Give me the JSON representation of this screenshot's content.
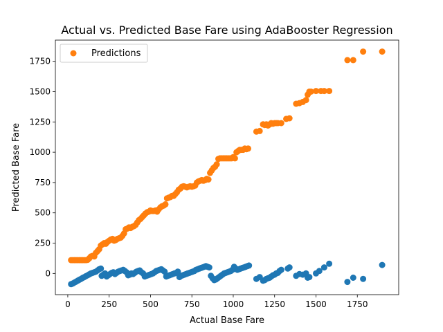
{
  "chart_data": {
    "type": "scatter",
    "title": "Actual vs. Predicted Base Fare using AdaBooster Regression",
    "xlabel": "Actual Base Fare",
    "ylabel": "Predicted Base Fare",
    "xlim": [
      -75,
      2000
    ],
    "ylim": [
      -175,
      1925
    ],
    "xticks": [
      0,
      250,
      500,
      750,
      1000,
      1250,
      1500,
      1750
    ],
    "yticks": [
      0,
      250,
      500,
      750,
      1000,
      1250,
      1500,
      1750
    ],
    "legend": {
      "position": "upper-left",
      "entries": [
        "Predictions"
      ]
    },
    "colors": {
      "residual": "#1f77b4",
      "predictions": "#ff7f0e"
    },
    "series": [
      {
        "name": "",
        "color": "#1f77b4",
        "points": [
          [
            20,
            -88
          ],
          [
            30,
            -83
          ],
          [
            40,
            -75
          ],
          [
            50,
            -68
          ],
          [
            60,
            -60
          ],
          [
            70,
            -52
          ],
          [
            80,
            -45
          ],
          [
            90,
            -37
          ],
          [
            100,
            -30
          ],
          [
            110,
            -22
          ],
          [
            120,
            -15
          ],
          [
            130,
            -8
          ],
          [
            140,
            0
          ],
          [
            150,
            5
          ],
          [
            160,
            10
          ],
          [
            170,
            15
          ],
          [
            180,
            25
          ],
          [
            190,
            35
          ],
          [
            200,
            40
          ],
          [
            205,
            -20
          ],
          [
            215,
            -10
          ],
          [
            225,
            0
          ],
          [
            235,
            -25
          ],
          [
            245,
            -15
          ],
          [
            255,
            -5
          ],
          [
            265,
            5
          ],
          [
            275,
            10
          ],
          [
            285,
            -5
          ],
          [
            295,
            5
          ],
          [
            305,
            15
          ],
          [
            315,
            20
          ],
          [
            325,
            25
          ],
          [
            335,
            30
          ],
          [
            345,
            20
          ],
          [
            355,
            10
          ],
          [
            365,
            -15
          ],
          [
            375,
            -10
          ],
          [
            385,
            0
          ],
          [
            395,
            -5
          ],
          [
            405,
            5
          ],
          [
            415,
            15
          ],
          [
            425,
            20
          ],
          [
            435,
            25
          ],
          [
            445,
            10
          ],
          [
            455,
            0
          ],
          [
            465,
            -25
          ],
          [
            475,
            -20
          ],
          [
            485,
            -15
          ],
          [
            495,
            -10
          ],
          [
            505,
            -5
          ],
          [
            515,
            0
          ],
          [
            525,
            10
          ],
          [
            535,
            20
          ],
          [
            545,
            25
          ],
          [
            555,
            30
          ],
          [
            565,
            35
          ],
          [
            575,
            25
          ],
          [
            585,
            15
          ],
          [
            595,
            -25
          ],
          [
            605,
            -20
          ],
          [
            615,
            -15
          ],
          [
            625,
            -10
          ],
          [
            635,
            -5
          ],
          [
            645,
            0
          ],
          [
            655,
            5
          ],
          [
            665,
            15
          ],
          [
            675,
            -30
          ],
          [
            685,
            -20
          ],
          [
            695,
            -15
          ],
          [
            705,
            -10
          ],
          [
            715,
            -5
          ],
          [
            725,
            0
          ],
          [
            735,
            5
          ],
          [
            745,
            10
          ],
          [
            755,
            15
          ],
          [
            765,
            20
          ],
          [
            775,
            30
          ],
          [
            785,
            35
          ],
          [
            795,
            40
          ],
          [
            805,
            45
          ],
          [
            815,
            50
          ],
          [
            825,
            55
          ],
          [
            835,
            60
          ],
          [
            845,
            55
          ],
          [
            855,
            50
          ],
          [
            865,
            -20
          ],
          [
            875,
            -40
          ],
          [
            885,
            -55
          ],
          [
            895,
            -50
          ],
          [
            905,
            -40
          ],
          [
            915,
            -30
          ],
          [
            925,
            -20
          ],
          [
            935,
            -10
          ],
          [
            945,
            0
          ],
          [
            955,
            5
          ],
          [
            965,
            10
          ],
          [
            975,
            15
          ],
          [
            985,
            20
          ],
          [
            995,
            30
          ],
          [
            1005,
            55
          ],
          [
            1015,
            40
          ],
          [
            1025,
            30
          ],
          [
            1035,
            35
          ],
          [
            1045,
            40
          ],
          [
            1055,
            45
          ],
          [
            1065,
            50
          ],
          [
            1075,
            55
          ],
          [
            1085,
            60
          ],
          [
            1095,
            65
          ],
          [
            1140,
            -45
          ],
          [
            1160,
            -30
          ],
          [
            1180,
            -60
          ],
          [
            1190,
            -55
          ],
          [
            1200,
            -45
          ],
          [
            1210,
            -40
          ],
          [
            1220,
            -35
          ],
          [
            1230,
            -25
          ],
          [
            1240,
            -15
          ],
          [
            1250,
            -10
          ],
          [
            1260,
            0
          ],
          [
            1270,
            5
          ],
          [
            1280,
            20
          ],
          [
            1290,
            30
          ],
          [
            1330,
            40
          ],
          [
            1340,
            50
          ],
          [
            1380,
            -20
          ],
          [
            1400,
            -5
          ],
          [
            1420,
            -10
          ],
          [
            1440,
            0
          ],
          [
            1450,
            -35
          ],
          [
            1460,
            -30
          ],
          [
            1500,
            0
          ],
          [
            1520,
            20
          ],
          [
            1550,
            50
          ],
          [
            1580,
            80
          ],
          [
            1690,
            -70
          ],
          [
            1725,
            -35
          ],
          [
            1785,
            -45
          ],
          [
            1900,
            70
          ]
        ]
      },
      {
        "name": "Predictions",
        "color": "#ff7f0e",
        "points": [
          [
            20,
            110
          ],
          [
            30,
            110
          ],
          [
            40,
            110
          ],
          [
            50,
            110
          ],
          [
            60,
            110
          ],
          [
            70,
            110
          ],
          [
            80,
            110
          ],
          [
            90,
            110
          ],
          [
            100,
            110
          ],
          [
            110,
            110
          ],
          [
            120,
            112
          ],
          [
            130,
            125
          ],
          [
            140,
            140
          ],
          [
            150,
            145
          ],
          [
            160,
            140
          ],
          [
            170,
            170
          ],
          [
            180,
            185
          ],
          [
            190,
            200
          ],
          [
            200,
            230
          ],
          [
            210,
            240
          ],
          [
            220,
            250
          ],
          [
            230,
            245
          ],
          [
            240,
            260
          ],
          [
            250,
            270
          ],
          [
            260,
            280
          ],
          [
            270,
            285
          ],
          [
            280,
            270
          ],
          [
            290,
            275
          ],
          [
            300,
            285
          ],
          [
            310,
            290
          ],
          [
            320,
            295
          ],
          [
            330,
            310
          ],
          [
            340,
            330
          ],
          [
            350,
            365
          ],
          [
            360,
            370
          ],
          [
            370,
            380
          ],
          [
            380,
            375
          ],
          [
            390,
            385
          ],
          [
            400,
            390
          ],
          [
            410,
            400
          ],
          [
            420,
            420
          ],
          [
            430,
            440
          ],
          [
            440,
            450
          ],
          [
            450,
            465
          ],
          [
            460,
            480
          ],
          [
            470,
            495
          ],
          [
            480,
            505
          ],
          [
            490,
            510
          ],
          [
            500,
            520
          ],
          [
            510,
            515
          ],
          [
            520,
            515
          ],
          [
            530,
            520
          ],
          [
            540,
            510
          ],
          [
            550,
            530
          ],
          [
            560,
            545
          ],
          [
            570,
            555
          ],
          [
            580,
            560
          ],
          [
            590,
            570
          ],
          [
            600,
            620
          ],
          [
            610,
            625
          ],
          [
            620,
            630
          ],
          [
            630,
            640
          ],
          [
            640,
            640
          ],
          [
            650,
            655
          ],
          [
            660,
            670
          ],
          [
            670,
            690
          ],
          [
            680,
            700
          ],
          [
            690,
            715
          ],
          [
            700,
            720
          ],
          [
            710,
            715
          ],
          [
            720,
            710
          ],
          [
            730,
            715
          ],
          [
            740,
            720
          ],
          [
            750,
            715
          ],
          [
            760,
            720
          ],
          [
            770,
            725
          ],
          [
            780,
            750
          ],
          [
            790,
            760
          ],
          [
            800,
            765
          ],
          [
            810,
            770
          ],
          [
            820,
            765
          ],
          [
            830,
            770
          ],
          [
            840,
            780
          ],
          [
            850,
            775
          ],
          [
            860,
            830
          ],
          [
            870,
            850
          ],
          [
            880,
            870
          ],
          [
            890,
            880
          ],
          [
            900,
            900
          ],
          [
            910,
            945
          ],
          [
            920,
            950
          ],
          [
            930,
            950
          ],
          [
            940,
            950
          ],
          [
            950,
            950
          ],
          [
            960,
            950
          ],
          [
            970,
            950
          ],
          [
            980,
            950
          ],
          [
            990,
            950
          ],
          [
            1000,
            960
          ],
          [
            1010,
            950
          ],
          [
            1020,
            1000
          ],
          [
            1030,
            1010
          ],
          [
            1040,
            1020
          ],
          [
            1050,
            1020
          ],
          [
            1060,
            1020
          ],
          [
            1070,
            1030
          ],
          [
            1080,
            1025
          ],
          [
            1090,
            1030
          ],
          [
            1140,
            1170
          ],
          [
            1160,
            1175
          ],
          [
            1180,
            1230
          ],
          [
            1190,
            1225
          ],
          [
            1200,
            1230
          ],
          [
            1210,
            1220
          ],
          [
            1220,
            1230
          ],
          [
            1230,
            1240
          ],
          [
            1240,
            1235
          ],
          [
            1250,
            1240
          ],
          [
            1260,
            1240
          ],
          [
            1270,
            1240
          ],
          [
            1290,
            1240
          ],
          [
            1320,
            1275
          ],
          [
            1340,
            1280
          ],
          [
            1380,
            1400
          ],
          [
            1400,
            1405
          ],
          [
            1420,
            1415
          ],
          [
            1440,
            1430
          ],
          [
            1450,
            1475
          ],
          [
            1460,
            1500
          ],
          [
            1470,
            1500
          ],
          [
            1500,
            1505
          ],
          [
            1530,
            1505
          ],
          [
            1550,
            1505
          ],
          [
            1580,
            1505
          ],
          [
            1690,
            1760
          ],
          [
            1725,
            1760
          ],
          [
            1785,
            1830
          ],
          [
            1900,
            1830
          ]
        ]
      }
    ]
  }
}
